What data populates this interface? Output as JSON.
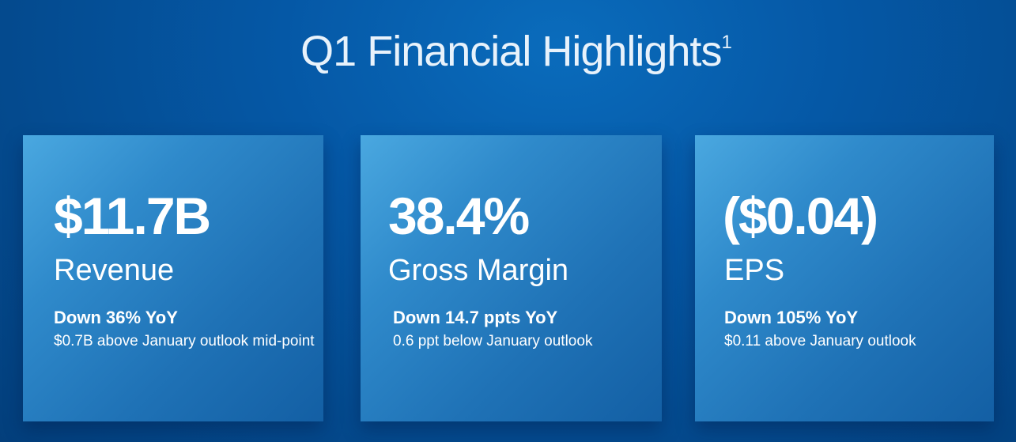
{
  "title": "Q1 Financial Highlights",
  "title_footnote": "1",
  "cards": [
    {
      "value": "$11.7B",
      "label": "Revenue",
      "change": "Down 36% YoY",
      "note": "$0.7B above January outlook mid-point"
    },
    {
      "value": "38.4%",
      "label": "Gross Margin",
      "change": "Down 14.7 ppts YoY",
      "note": "0.6 ppt below January outlook"
    },
    {
      "value": "($0.04)",
      "label": "EPS",
      "change": "Down 105% YoY",
      "note": "$0.11 above January outlook"
    }
  ]
}
